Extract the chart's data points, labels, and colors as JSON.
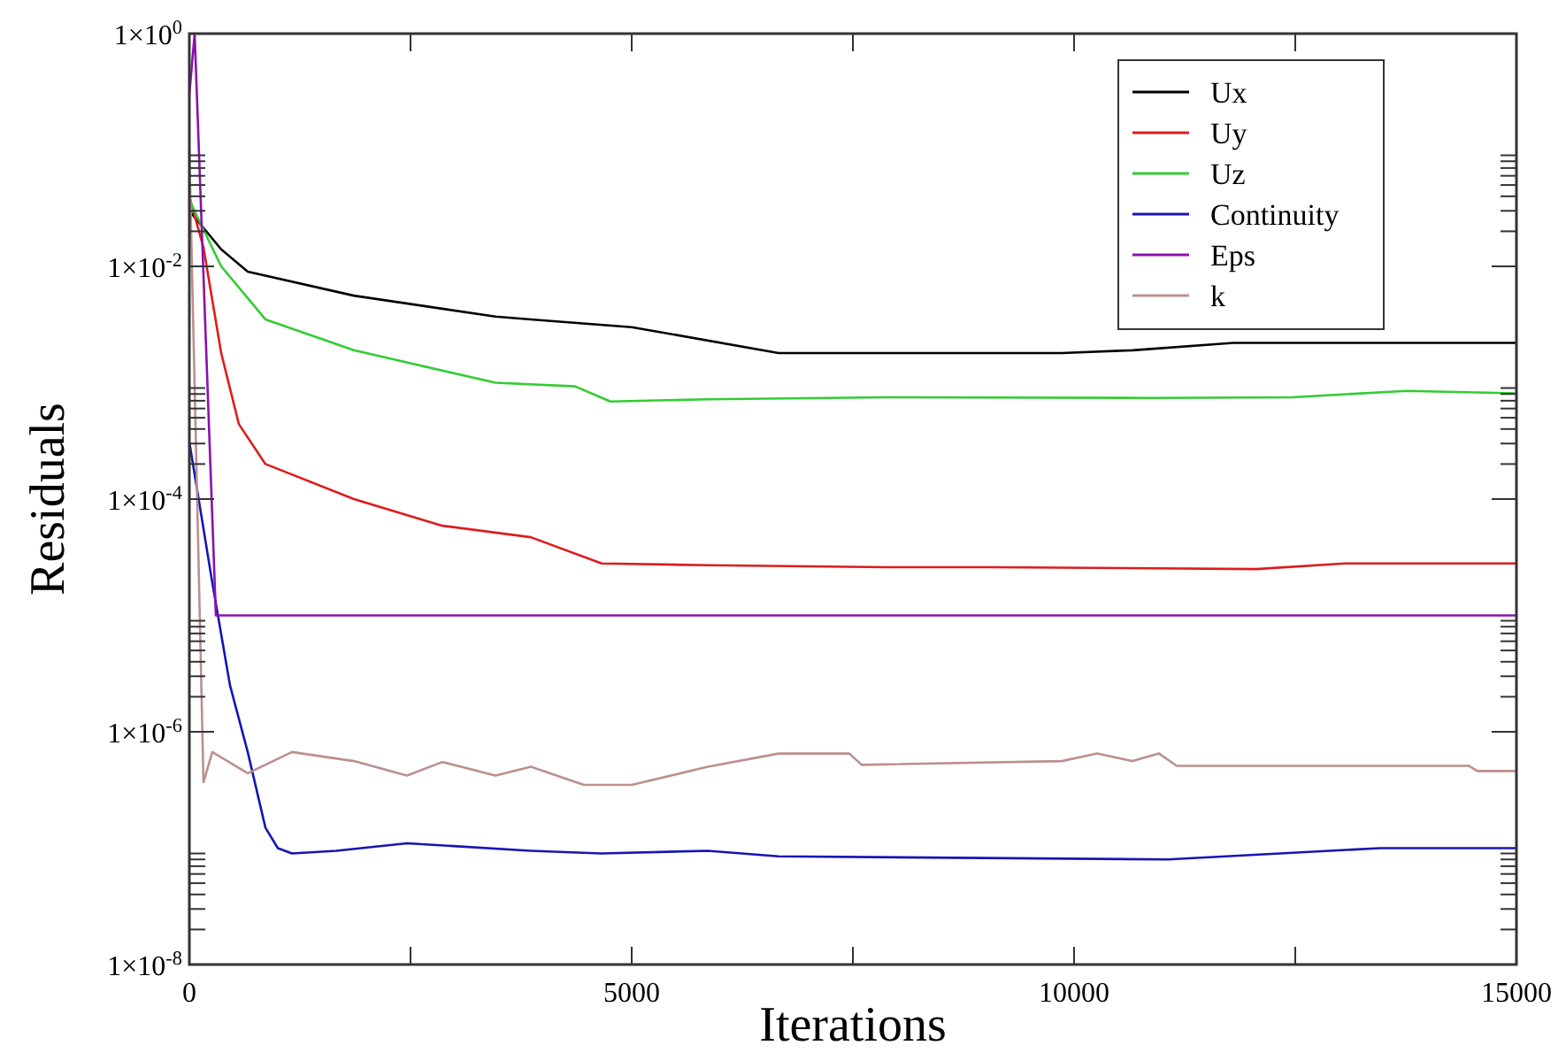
{
  "chart_data": {
    "type": "line",
    "xlabel": "Iterations",
    "ylabel": "Residuals",
    "log": "y",
    "grid": false,
    "legend": "top right",
    "marker": "none",
    "line_style": "solid",
    "xlim": [
      0,
      15000
    ],
    "ylim": [
      1e-08,
      1
    ],
    "xticks": [
      0,
      {
        "value": 2500,
        "label": null
      },
      5000,
      {
        "value": 7500,
        "label": null
      },
      10000,
      {
        "value": 12500,
        "label": null
      },
      15000
    ],
    "yticks": [
      {
        "value": 1,
        "label": "1×10$^{0}$"
      },
      {
        "value": 0.01,
        "label": "1×10$^{-2}$"
      },
      {
        "value": 0.0001,
        "label": "1×10$^{-4}$"
      },
      {
        "value": 1e-06,
        "label": "1×10$^{-6}$"
      },
      {
        "value": 1e-08,
        "label": "1×10$^{-8}$"
      },
      {
        "value": 0.02,
        "label": null
      },
      {
        "value": 0.03,
        "label": null
      },
      {
        "value": 0.04,
        "label": null
      },
      {
        "value": 0.05,
        "label": null
      },
      {
        "value": 0.06,
        "label": null
      },
      {
        "value": 0.07,
        "label": null
      },
      {
        "value": 0.08,
        "label": null
      },
      {
        "value": 0.09,
        "label": null
      },
      {
        "value": 0.0002,
        "label": null
      },
      {
        "value": 0.0003,
        "label": null
      },
      {
        "value": 0.0004,
        "label": null
      },
      {
        "value": 0.0005,
        "label": null
      },
      {
        "value": 0.0006,
        "label": null
      },
      {
        "value": 0.0007,
        "label": null
      },
      {
        "value": 0.0008,
        "label": null
      },
      {
        "value": 0.0009,
        "label": null
      },
      {
        "value": 2e-06,
        "label": null
      },
      {
        "value": 3e-06,
        "label": null
      },
      {
        "value": 4e-06,
        "label": null
      },
      {
        "value": 5e-06,
        "label": null
      },
      {
        "value": 6e-06,
        "label": null
      },
      {
        "value": 7e-06,
        "label": null
      },
      {
        "value": 8e-06,
        "label": null
      },
      {
        "value": 9e-06,
        "label": null
      },
      {
        "value": 2e-08,
        "label": null
      },
      {
        "value": 3e-08,
        "label": null
      },
      {
        "value": 4e-08,
        "label": null
      },
      {
        "value": 5e-08,
        "label": null
      },
      {
        "value": 6e-08,
        "label": null
      },
      {
        "value": 7e-08,
        "label": null
      },
      {
        "value": 8e-08,
        "label": null
      },
      {
        "value": 9e-08,
        "label": null
      }
    ],
    "series": [
      {
        "name": "Ux",
        "color": "#000000",
        "x": [
          0,
          360,
          660,
          1860,
          3460,
          3860,
          5000,
          6660,
          7060,
          9860,
          10660,
          11800,
          13060,
          15000
        ],
        "values": [
          0.03,
          0.014,
          0.009,
          0.0056,
          0.0037,
          0.0035,
          0.003,
          0.0018,
          0.0018,
          0.0018,
          0.0019,
          0.0022,
          0.0022,
          0.0022
        ]
      },
      {
        "name": "Uy",
        "color": "#dd1c1c",
        "x": [
          0,
          160,
          360,
          560,
          860,
          1860,
          2860,
          3860,
          4660,
          5860,
          7860,
          9060,
          12060,
          13060,
          15000
        ],
        "values": [
          0.04,
          0.0145,
          0.0018,
          0.00044,
          0.0002,
          0.0001,
          5.9e-05,
          4.7e-05,
          2.8e-05,
          2.7e-05,
          2.6e-05,
          2.6e-05,
          2.5e-05,
          2.8e-05,
          2.8e-05
        ]
      },
      {
        "name": "Uz",
        "color": "#33cc33",
        "x": [
          0,
          360,
          860,
          1860,
          3460,
          4360,
          4760,
          5860,
          7860,
          10860,
          12460,
          13760,
          15000
        ],
        "values": [
          0.037,
          0.01,
          0.0035,
          0.0019,
          0.001,
          0.00093,
          0.00069,
          0.00072,
          0.00075,
          0.00074,
          0.00075,
          0.00085,
          0.00081
        ]
      },
      {
        "name": "Continuity",
        "color": "#1515b5",
        "x": [
          0,
          260,
          460,
          660,
          860,
          1000,
          1160,
          1660,
          2460,
          3860,
          4660,
          5860,
          6660,
          11060,
          13460,
          15000
        ],
        "values": [
          0.00031,
          1.9e-05,
          2.5e-06,
          6.7e-07,
          1.5e-07,
          1e-07,
          9e-08,
          9.5e-08,
          1.1e-07,
          9.5e-08,
          9e-08,
          9.5e-08,
          8.5e-08,
          8e-08,
          1e-07,
          1e-07
        ]
      },
      {
        "name": "Eps",
        "color": "#8b10b0",
        "x": [
          0,
          60,
          300,
          15000
        ],
        "values": [
          0.3,
          1,
          1e-05,
          1e-05
        ]
      },
      {
        "name": "k",
        "color": "#bc8f8f",
        "x": [
          0,
          160,
          260,
          660,
          1160,
          1860,
          2460,
          2860,
          3460,
          3860,
          4460,
          5000,
          5860,
          6660,
          7460,
          7600,
          9860,
          10260,
          10660,
          10960,
          11160,
          14460,
          14560,
          15000
        ],
        "values": [
          0.1,
          3.7e-07,
          6.7e-07,
          4.4e-07,
          6.7e-07,
          5.6e-07,
          4.2e-07,
          5.5e-07,
          4.2e-07,
          5e-07,
          3.5e-07,
          3.5e-07,
          5e-07,
          6.5e-07,
          6.5e-07,
          5.2e-07,
          5.6e-07,
          6.5e-07,
          5.6e-07,
          6.5e-07,
          5.1e-07,
          5.1e-07,
          4.6e-07,
          4.6e-07
        ]
      }
    ]
  }
}
